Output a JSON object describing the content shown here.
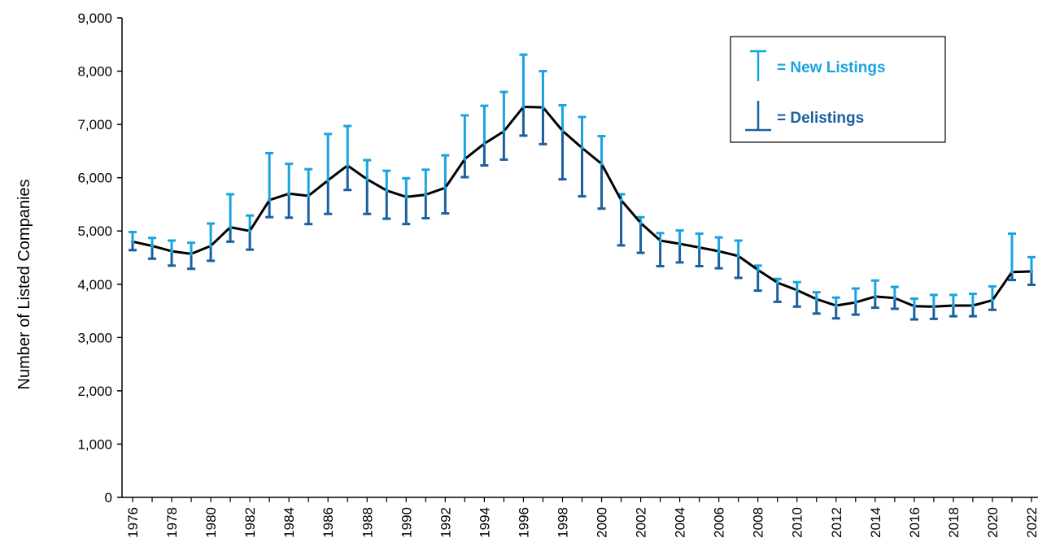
{
  "chart_data": {
    "type": "line",
    "title": "",
    "xlabel": "",
    "ylabel": "Number of Listed Companies",
    "ylim": [
      0,
      9000
    ],
    "y_ticks": [
      "0",
      "1,000",
      "2,000",
      "3,000",
      "4,000",
      "5,000",
      "6,000",
      "7,000",
      "8,000",
      "9,000"
    ],
    "y_tick_values": [
      0,
      1000,
      2000,
      3000,
      4000,
      5000,
      6000,
      7000,
      8000,
      9000
    ],
    "x_tick_labels": [
      "1976",
      "1978",
      "1980",
      "1982",
      "1984",
      "1986",
      "1988",
      "1990",
      "1992",
      "1994",
      "1996",
      "1998",
      "2000",
      "2002",
      "2004",
      "2006",
      "2008",
      "2010",
      "2012",
      "2014",
      "2016",
      "2018",
      "2020",
      "2022"
    ],
    "grid": false,
    "legend_position": "top-right",
    "legend": [
      {
        "label": "= New Listings",
        "color": "#1aa3e0",
        "symbol": "up-bar"
      },
      {
        "label": "= Delistings",
        "color": "#1a5fa0",
        "symbol": "down-bar"
      }
    ],
    "colors": {
      "line": "#000000",
      "new_listings": "#1aa3e0",
      "delistings": "#1a5fa0"
    },
    "years": [
      1976,
      1977,
      1978,
      1979,
      1980,
      1981,
      1982,
      1983,
      1984,
      1985,
      1986,
      1987,
      1988,
      1989,
      1990,
      1991,
      1992,
      1993,
      1994,
      1995,
      1996,
      1997,
      1998,
      1999,
      2000,
      2001,
      2002,
      2003,
      2004,
      2005,
      2006,
      2007,
      2008,
      2009,
      2010,
      2011,
      2012,
      2013,
      2014,
      2015,
      2016,
      2017,
      2018,
      2019,
      2020,
      2021,
      2022
    ],
    "listed_companies": [
      4800,
      4720,
      4620,
      4570,
      4720,
      5070,
      5000,
      5580,
      5700,
      5660,
      5950,
      6230,
      5970,
      5760,
      5640,
      5680,
      5810,
      6350,
      6640,
      6870,
      7330,
      7320,
      6880,
      6560,
      6260,
      5580,
      5150,
      4820,
      4760,
      4690,
      4620,
      4530,
      4270,
      4030,
      3890,
      3720,
      3600,
      3660,
      3770,
      3740,
      3590,
      3580,
      3600,
      3600,
      3700,
      4230,
      4240
    ],
    "new_listings_top": [
      4980,
      4870,
      4820,
      4780,
      5140,
      5690,
      5290,
      6460,
      6260,
      6160,
      6820,
      6970,
      6330,
      6130,
      5990,
      6150,
      6420,
      7170,
      7350,
      7610,
      8310,
      8000,
      7360,
      7140,
      6780,
      5690,
      5260,
      4960,
      5010,
      4950,
      4880,
      4820,
      4350,
      4100,
      4040,
      3850,
      3750,
      3920,
      4070,
      3950,
      3730,
      3800,
      3800,
      3820,
      3960,
      4950,
      4510
    ],
    "delistings_bottom": [
      4640,
      4480,
      4350,
      4290,
      4440,
      4800,
      4650,
      5260,
      5250,
      5130,
      5320,
      5770,
      5320,
      5230,
      5130,
      5240,
      5330,
      6010,
      6230,
      6340,
      6790,
      6630,
      5970,
      5650,
      5420,
      4730,
      4590,
      4340,
      4410,
      4340,
      4300,
      4120,
      3880,
      3670,
      3580,
      3450,
      3360,
      3430,
      3560,
      3540,
      3340,
      3350,
      3400,
      3400,
      3520,
      4080,
      3990
    ]
  }
}
